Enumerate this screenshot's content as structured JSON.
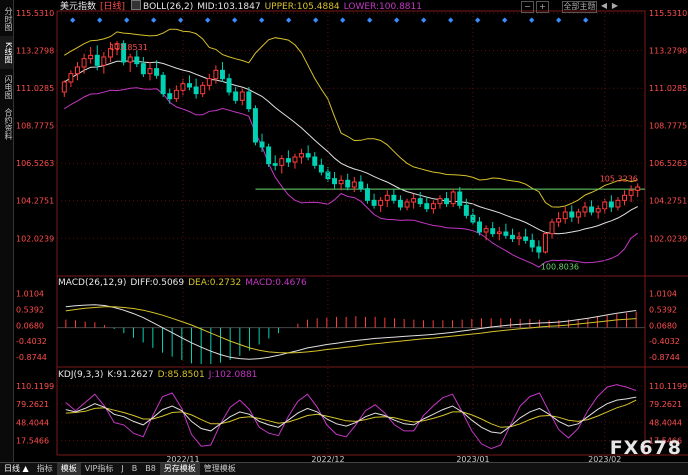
{
  "sidebar": {
    "tabs": [
      {
        "label": "分时图",
        "active": false
      },
      {
        "label": "K线图",
        "active": true
      },
      {
        "label": "闪电图",
        "active": false
      },
      {
        "label": "合约资料",
        "active": false
      }
    ]
  },
  "main_legend": {
    "symbol": "美元指数",
    "period": "[日线]",
    "boll": "BOLL(26,2)",
    "mid": "MID:103.1847",
    "upper": "UPPER:105.4884",
    "lower": "LOWER:100.8811"
  },
  "macd_legend": {
    "name": "MACD(26,12,9)",
    "diff": "DIFF:0.5069",
    "dea": "DEA:0.2732",
    "macd": "MACD:0.4676"
  },
  "kdj_legend": {
    "name": "KDJ(9,3,3)",
    "k": "K:91.2627",
    "d": "D:85.8501",
    "j": "J:102.0881"
  },
  "top_controls": {
    "zoom_out": "−",
    "zoom_in": "+",
    "mode": "全部主题",
    "prev": "◀",
    "next": "▶"
  },
  "toolbar": {
    "period": "日线 ▲",
    "items": [
      "指标",
      "模板",
      "VIP指标",
      "J",
      "B",
      "B8",
      "另存模板",
      "管理模板"
    ],
    "selected": "模板"
  },
  "watermark": "FX678",
  "colors": {
    "up": "#ff3b3b",
    "down": "#00d2b4",
    "mid": "#e0e0e0",
    "upper": "#d6c22b",
    "lower": "#c437c4",
    "diff": "#e0e0e0",
    "dea": "#d6c22b",
    "k": "#e0e0e0",
    "d": "#d6c22b",
    "j": "#c437c4",
    "axis_text": "#ff4d4d",
    "grid": "#5a1010"
  },
  "chart_data": [
    {
      "type": "candlestick",
      "title": "美元指数 [日线]",
      "y_ticks": [
        "115.5310",
        "113.2798",
        "111.0285",
        "108.7775",
        "106.5263",
        "104.2751",
        "102.0239"
      ],
      "ylim": [
        100.0,
        115.6
      ],
      "x_ticks": [
        "2022/11",
        "2022/12",
        "2023/01",
        "2023/02"
      ],
      "annotations": [
        {
          "label": "113.8531",
          "value": 113.8531
        },
        {
          "label": "105.3236",
          "value": 105.3236
        },
        {
          "label": "100.8036",
          "value": 100.8036
        }
      ],
      "horizontal_line": 104.97,
      "ohlc": [
        [
          110.8,
          111.5,
          110.5,
          111.4
        ],
        [
          111.4,
          112.1,
          111.1,
          111.9
        ],
        [
          111.9,
          112.6,
          111.5,
          112.3
        ],
        [
          112.3,
          113.1,
          111.9,
          112.8
        ],
        [
          112.8,
          113.5,
          112.5,
          113.0
        ],
        [
          113.0,
          113.6,
          112.1,
          112.4
        ],
        [
          112.4,
          113.2,
          111.9,
          112.9
        ],
        [
          112.9,
          113.8,
          112.6,
          113.4
        ],
        [
          113.4,
          113.85,
          113.0,
          113.7
        ],
        [
          113.7,
          113.9,
          112.4,
          112.6
        ],
        [
          112.6,
          113.1,
          112.0,
          112.9
        ],
        [
          112.9,
          113.3,
          112.3,
          112.5
        ],
        [
          112.5,
          112.9,
          111.7,
          111.9
        ],
        [
          111.9,
          112.6,
          111.5,
          112.2
        ],
        [
          112.2,
          112.7,
          111.6,
          111.8
        ],
        [
          111.8,
          112.0,
          110.5,
          110.7
        ],
        [
          110.7,
          111.0,
          110.1,
          110.4
        ],
        [
          110.4,
          111.2,
          110.2,
          110.9
        ],
        [
          110.9,
          111.6,
          110.6,
          111.3
        ],
        [
          111.3,
          111.8,
          110.9,
          111.1
        ],
        [
          111.1,
          111.6,
          110.4,
          110.7
        ],
        [
          110.7,
          111.4,
          110.5,
          111.2
        ],
        [
          111.2,
          111.9,
          110.9,
          111.6
        ],
        [
          111.6,
          112.4,
          111.3,
          112.1
        ],
        [
          112.1,
          112.6,
          111.4,
          111.6
        ],
        [
          111.6,
          111.9,
          110.6,
          110.8
        ],
        [
          110.8,
          111.1,
          110.1,
          110.3
        ],
        [
          110.3,
          111.0,
          110.0,
          110.8
        ],
        [
          110.8,
          111.1,
          109.6,
          109.8
        ],
        [
          109.8,
          110.0,
          107.6,
          107.8
        ],
        [
          107.8,
          108.3,
          107.2,
          107.5
        ],
        [
          107.5,
          107.7,
          106.3,
          106.5
        ],
        [
          106.5,
          107.0,
          106.1,
          106.4
        ],
        [
          106.4,
          107.0,
          105.9,
          106.8
        ],
        [
          106.8,
          107.3,
          106.3,
          106.6
        ],
        [
          106.6,
          107.1,
          106.2,
          106.9
        ],
        [
          106.9,
          107.4,
          106.5,
          107.1
        ],
        [
          107.1,
          107.6,
          106.7,
          106.9
        ],
        [
          106.9,
          107.2,
          106.2,
          106.4
        ],
        [
          106.4,
          106.8,
          105.8,
          106.0
        ],
        [
          106.0,
          106.3,
          105.4,
          105.6
        ],
        [
          105.6,
          106.0,
          105.0,
          105.3
        ],
        [
          105.3,
          105.8,
          104.9,
          105.5
        ],
        [
          105.5,
          105.9,
          104.9,
          105.1
        ],
        [
          105.1,
          105.7,
          104.8,
          105.4
        ],
        [
          105.4,
          105.8,
          104.8,
          105.0
        ],
        [
          105.0,
          105.3,
          104.1,
          104.3
        ],
        [
          104.3,
          104.7,
          103.8,
          104.0
        ],
        [
          104.0,
          104.5,
          103.6,
          104.3
        ],
        [
          104.3,
          104.9,
          103.9,
          104.6
        ],
        [
          104.6,
          105.0,
          104.1,
          104.3
        ],
        [
          104.3,
          104.6,
          103.7,
          103.9
        ],
        [
          103.9,
          104.4,
          103.7,
          104.2
        ],
        [
          104.2,
          104.7,
          103.8,
          104.4
        ],
        [
          104.4,
          104.8,
          103.9,
          104.1
        ],
        [
          104.1,
          104.5,
          103.6,
          103.8
        ],
        [
          103.8,
          104.3,
          103.5,
          104.1
        ],
        [
          104.1,
          104.6,
          103.8,
          104.4
        ],
        [
          104.4,
          104.8,
          103.9,
          104.1
        ],
        [
          104.1,
          105.0,
          103.9,
          104.8
        ],
        [
          104.8,
          105.1,
          103.8,
          104.0
        ],
        [
          104.0,
          104.4,
          103.2,
          103.4
        ],
        [
          103.4,
          103.8,
          102.8,
          103.0
        ],
        [
          103.0,
          103.3,
          102.2,
          102.4
        ],
        [
          102.4,
          102.8,
          101.9,
          102.6
        ],
        [
          102.6,
          103.0,
          102.1,
          102.3
        ],
        [
          102.3,
          102.7,
          101.9,
          102.4
        ],
        [
          102.4,
          102.9,
          102.0,
          102.2
        ],
        [
          102.2,
          102.6,
          101.8,
          102.0
        ],
        [
          102.0,
          102.4,
          101.6,
          102.1
        ],
        [
          102.1,
          102.6,
          101.7,
          101.9
        ],
        [
          101.9,
          102.3,
          101.2,
          101.5
        ],
        [
          101.5,
          101.9,
          100.8,
          101.2
        ],
        [
          101.2,
          102.4,
          101.1,
          102.3
        ],
        [
          102.3,
          103.2,
          102.0,
          103.0
        ],
        [
          103.0,
          103.6,
          102.7,
          103.2
        ],
        [
          103.2,
          103.9,
          102.9,
          103.6
        ],
        [
          103.6,
          104.0,
          103.0,
          103.3
        ],
        [
          103.3,
          103.8,
          102.9,
          103.6
        ],
        [
          103.6,
          104.2,
          103.3,
          103.9
        ],
        [
          103.9,
          104.3,
          103.4,
          103.6
        ],
        [
          103.6,
          104.0,
          103.2,
          103.8
        ],
        [
          103.8,
          104.4,
          103.5,
          104.2
        ],
        [
          104.2,
          104.6,
          103.6,
          103.9
        ],
        [
          103.9,
          104.5,
          103.7,
          104.3
        ],
        [
          104.3,
          104.9,
          104.0,
          104.6
        ],
        [
          104.6,
          105.2,
          104.2,
          104.9
        ],
        [
          104.9,
          105.32,
          104.5,
          105.1
        ]
      ]
    },
    {
      "type": "bar_line",
      "title": "MACD(26,12,9)",
      "y_ticks": [
        "1.0104",
        "0.5392",
        "0.0680",
        "-0.4032",
        "-0.8744"
      ],
      "ylim": [
        -1.05,
        1.15
      ],
      "diff": [
        0.62,
        0.65,
        0.67,
        0.68,
        0.66,
        0.6,
        0.52,
        0.42,
        0.3,
        0.15,
        0.0,
        -0.15,
        -0.3,
        -0.45,
        -0.58,
        -0.7,
        -0.8,
        -0.88,
        -0.92,
        -0.94,
        -0.92,
        -0.88,
        -0.82,
        -0.75,
        -0.68,
        -0.6,
        -0.55,
        -0.5,
        -0.46,
        -0.42,
        -0.38,
        -0.35,
        -0.32,
        -0.3,
        -0.28,
        -0.26,
        -0.24,
        -0.22,
        -0.2,
        -0.17,
        -0.14,
        -0.1,
        -0.06,
        -0.02,
        0.02,
        0.05,
        0.08,
        0.1,
        0.12,
        0.14,
        0.15,
        0.17,
        0.2,
        0.24,
        0.28,
        0.33,
        0.38,
        0.43,
        0.47,
        0.51
      ],
      "dea": [
        0.5,
        0.54,
        0.58,
        0.6,
        0.62,
        0.62,
        0.6,
        0.57,
        0.52,
        0.45,
        0.37,
        0.28,
        0.18,
        0.08,
        -0.04,
        -0.16,
        -0.28,
        -0.4,
        -0.5,
        -0.6,
        -0.67,
        -0.72,
        -0.74,
        -0.75,
        -0.74,
        -0.72,
        -0.69,
        -0.65,
        -0.62,
        -0.58,
        -0.55,
        -0.51,
        -0.48,
        -0.45,
        -0.42,
        -0.39,
        -0.36,
        -0.33,
        -0.31,
        -0.28,
        -0.25,
        -0.22,
        -0.19,
        -0.16,
        -0.12,
        -0.09,
        -0.06,
        -0.03,
        -0.01,
        0.02,
        0.04,
        0.06,
        0.08,
        0.11,
        0.14,
        0.17,
        0.2,
        0.23,
        0.25,
        0.27
      ]
    },
    {
      "type": "line",
      "title": "KDJ(9,3,3)",
      "y_ticks": [
        "110.1199",
        "79.2621",
        "48.4044",
        "17.5466"
      ],
      "ylim": [
        5,
        120
      ],
      "k": [
        70,
        66,
        72,
        80,
        74,
        62,
        58,
        50,
        44,
        56,
        70,
        76,
        68,
        50,
        38,
        34,
        46,
        58,
        66,
        62,
        50,
        44,
        40,
        52,
        64,
        72,
        66,
        54,
        46,
        42,
        48,
        58,
        64,
        60,
        52,
        46,
        44,
        54,
        62,
        70,
        76,
        66,
        52,
        40,
        32,
        30,
        42,
        56,
        66,
        72,
        62,
        50,
        42,
        46,
        58,
        70,
        80,
        86,
        88,
        91
      ],
      "d": [
        64,
        65,
        67,
        72,
        73,
        69,
        65,
        60,
        54,
        54,
        59,
        65,
        66,
        61,
        53,
        46,
        46,
        50,
        56,
        58,
        55,
        51,
        47,
        49,
        54,
        60,
        62,
        59,
        55,
        51,
        50,
        53,
        57,
        58,
        56,
        52,
        49,
        51,
        55,
        60,
        66,
        66,
        61,
        54,
        46,
        40,
        41,
        46,
        53,
        59,
        60,
        57,
        52,
        50,
        53,
        59,
        66,
        73,
        78,
        86
      ],
      "j": [
        82,
        68,
        82,
        96,
        76,
        48,
        44,
        30,
        24,
        60,
        92,
        98,
        72,
        28,
        8,
        10,
        46,
        74,
        86,
        70,
        40,
        30,
        26,
        58,
        84,
        96,
        74,
        44,
        28,
        24,
        44,
        68,
        78,
        64,
        44,
        34,
        34,
        60,
        76,
        90,
        96,
        66,
        34,
        12,
        4,
        10,
        44,
        76,
        92,
        98,
        66,
        36,
        22,
        38,
        68,
        92,
        108,
        112,
        108,
        102
      ]
    }
  ]
}
